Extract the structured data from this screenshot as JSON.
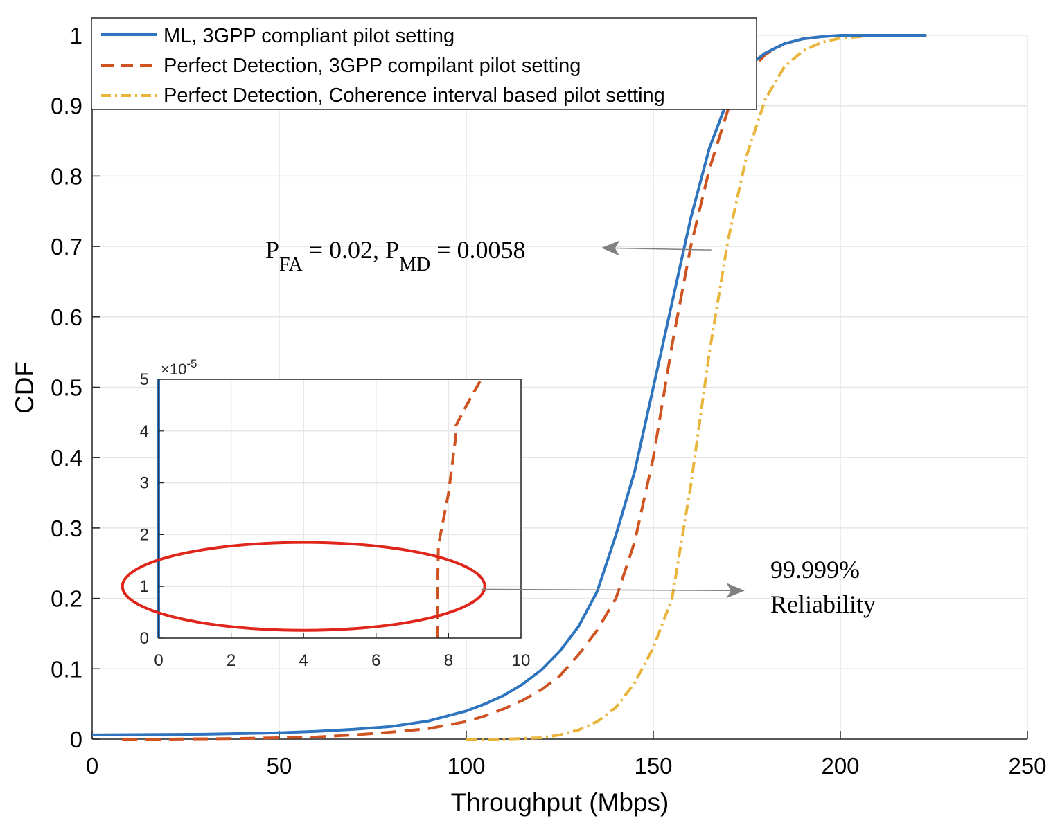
{
  "colors": {
    "ml": "#2f74be",
    "perfect_3gpp": "#cf5320",
    "perfect_coherence": "#e9b43a",
    "ellipse": "#e0251b",
    "arrow": "#808080",
    "grid": "#e6e6e6"
  },
  "chart_data": [
    {
      "type": "line",
      "title": "",
      "xlabel": "Throughput (Mbps)",
      "ylabel": "CDF",
      "xlim": [
        0,
        250
      ],
      "ylim": [
        0,
        1
      ],
      "xticks": [
        "0",
        "50",
        "100",
        "150",
        "200",
        "250"
      ],
      "yticks": [
        "0",
        "0.1",
        "0.2",
        "0.3",
        "0.4",
        "0.5",
        "0.6",
        "0.7",
        "0.8",
        "0.9",
        "1"
      ],
      "grid": true,
      "legend_position": "top-left",
      "series": [
        {
          "name": "ML, 3GPP compliant pilot setting",
          "style": "solid",
          "x": [
            0,
            30,
            50,
            60,
            70,
            80,
            90,
            95,
            100,
            105,
            110,
            115,
            120,
            125,
            130,
            135,
            140,
            145,
            150,
            155,
            160,
            165,
            170,
            175,
            180,
            185,
            190,
            195,
            200,
            210,
            220,
            223
          ],
          "y": [
            0.006,
            0.007,
            0.009,
            0.011,
            0.014,
            0.018,
            0.026,
            0.033,
            0.04,
            0.05,
            0.062,
            0.078,
            0.098,
            0.125,
            0.16,
            0.21,
            0.29,
            0.38,
            0.5,
            0.62,
            0.74,
            0.84,
            0.91,
            0.955,
            0.975,
            0.988,
            0.995,
            0.998,
            1.0,
            1.0,
            1.0,
            1.0
          ]
        },
        {
          "name": "Perfect Detection, 3GPP compilant pilot setting",
          "style": "dashed",
          "x": [
            8,
            20,
            40,
            60,
            70,
            80,
            90,
            100,
            105,
            110,
            115,
            120,
            125,
            130,
            135,
            140,
            145,
            150,
            155,
            160,
            165,
            170,
            175,
            180,
            185,
            190,
            195,
            200,
            210,
            220,
            223
          ],
          "y": [
            0.0,
            0.0,
            0.001,
            0.003,
            0.006,
            0.01,
            0.015,
            0.025,
            0.033,
            0.043,
            0.055,
            0.07,
            0.09,
            0.12,
            0.155,
            0.2,
            0.28,
            0.4,
            0.56,
            0.7,
            0.81,
            0.895,
            0.945,
            0.973,
            0.988,
            0.995,
            0.998,
            1.0,
            1.0,
            1.0,
            1.0
          ]
        },
        {
          "name": "Perfect Detection, Coherence interval based pilot setting",
          "style": "dashdot",
          "x": [
            100,
            110,
            120,
            125,
            130,
            135,
            140,
            145,
            150,
            155,
            160,
            165,
            170,
            175,
            180,
            185,
            190,
            195,
            200,
            210,
            220,
            223
          ],
          "y": [
            0.0,
            0.0,
            0.002,
            0.006,
            0.013,
            0.025,
            0.045,
            0.08,
            0.13,
            0.2,
            0.36,
            0.55,
            0.71,
            0.83,
            0.91,
            0.955,
            0.978,
            0.99,
            0.996,
            1.0,
            1.0,
            1.0
          ]
        }
      ],
      "annotations": [
        {
          "id": "pfa_pmd",
          "parts": [
            {
              "text": "P",
              "sub": false
            },
            {
              "text": "FA",
              "sub": true
            },
            {
              "text": " = 0.02, P",
              "sub": false
            },
            {
              "text": "MD",
              "sub": true
            },
            {
              "text": " = 0.0058",
              "sub": false
            }
          ],
          "arrow_from": [
            165.5,
            0.695
          ],
          "arrow_to": [
            136.5,
            0.698
          ]
        },
        {
          "id": "reliability",
          "lines": [
            "99.999%",
            "Reliability"
          ],
          "arrow_from": [
            104,
            0.213
          ],
          "arrow_to": [
            174,
            0.211
          ]
        }
      ]
    },
    {
      "type": "line",
      "title": "",
      "inset": true,
      "xlim": [
        0,
        10
      ],
      "ylim": [
        0,
        5
      ],
      "xticks": [
        "0",
        "2",
        "4",
        "6",
        "8",
        "10"
      ],
      "yticks": [
        "0",
        "1",
        "2",
        "3",
        "4",
        "5"
      ],
      "y_exponent_label": "×10",
      "y_exponent": "-5",
      "grid": true,
      "series": [
        {
          "name": "ML, 3GPP compliant pilot setting",
          "style": "solid",
          "x": [
            0,
            0
          ],
          "y": [
            0,
            5
          ]
        },
        {
          "name": "Perfect Detection, 3GPP compilant pilot setting",
          "style": "dashed",
          "x": [
            7.7,
            7.7,
            7.72,
            8.0,
            8.2,
            8.2,
            8.5,
            8.9
          ],
          "y": [
            0,
            1.0,
            1.8,
            2.8,
            3.9,
            4.1,
            4.5,
            5.0
          ]
        }
      ],
      "highlight_ellipse": {
        "cx": 4,
        "cy": 1,
        "rx": 5,
        "ry": 0.85
      }
    }
  ]
}
